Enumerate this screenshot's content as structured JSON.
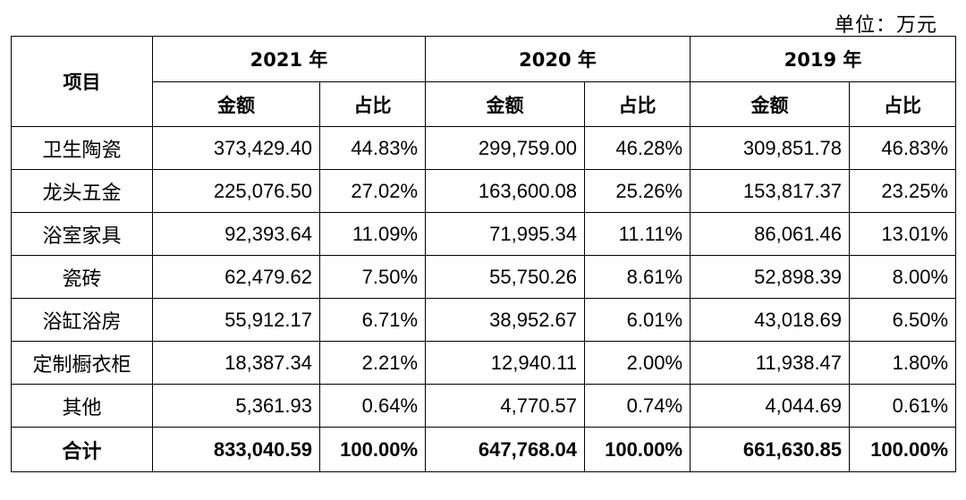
{
  "unit_label": "单位：万元",
  "header": {
    "item_label": "项目",
    "years": [
      "2021 年",
      "2020 年",
      "2019 年"
    ],
    "amount_label": "金额",
    "ratio_label": "占比"
  },
  "rows": [
    {
      "item": "卫生陶瓷",
      "y2021": {
        "amount": "373,429.40",
        "ratio": "44.83%"
      },
      "y2020": {
        "amount": "299,759.00",
        "ratio": "46.28%"
      },
      "y2019": {
        "amount": "309,851.78",
        "ratio": "46.83%"
      }
    },
    {
      "item": "龙头五金",
      "y2021": {
        "amount": "225,076.50",
        "ratio": "27.02%"
      },
      "y2020": {
        "amount": "163,600.08",
        "ratio": "25.26%"
      },
      "y2019": {
        "amount": "153,817.37",
        "ratio": "23.25%"
      }
    },
    {
      "item": "浴室家具",
      "y2021": {
        "amount": "92,393.64",
        "ratio": "11.09%"
      },
      "y2020": {
        "amount": "71,995.34",
        "ratio": "11.11%"
      },
      "y2019": {
        "amount": "86,061.46",
        "ratio": "13.01%"
      }
    },
    {
      "item": "瓷砖",
      "y2021": {
        "amount": "62,479.62",
        "ratio": "7.50%"
      },
      "y2020": {
        "amount": "55,750.26",
        "ratio": "8.61%"
      },
      "y2019": {
        "amount": "52,898.39",
        "ratio": "8.00%"
      }
    },
    {
      "item": "浴缸浴房",
      "y2021": {
        "amount": "55,912.17",
        "ratio": "6.71%"
      },
      "y2020": {
        "amount": "38,952.67",
        "ratio": "6.01%"
      },
      "y2019": {
        "amount": "43,018.69",
        "ratio": "6.50%"
      }
    },
    {
      "item": "定制橱衣柜",
      "y2021": {
        "amount": "18,387.34",
        "ratio": "2.21%"
      },
      "y2020": {
        "amount": "12,940.11",
        "ratio": "2.00%"
      },
      "y2019": {
        "amount": "11,938.47",
        "ratio": "1.80%"
      }
    },
    {
      "item": "其他",
      "y2021": {
        "amount": "5,361.93",
        "ratio": "0.64%"
      },
      "y2020": {
        "amount": "4,770.57",
        "ratio": "0.74%"
      },
      "y2019": {
        "amount": "4,044.69",
        "ratio": "0.61%"
      }
    },
    {
      "item": "合计",
      "y2021": {
        "amount": "833,040.59",
        "ratio": "100.00%"
      },
      "y2020": {
        "amount": "647,768.04",
        "ratio": "100.00%"
      },
      "y2019": {
        "amount": "661,630.85",
        "ratio": "100.00%"
      }
    }
  ]
}
